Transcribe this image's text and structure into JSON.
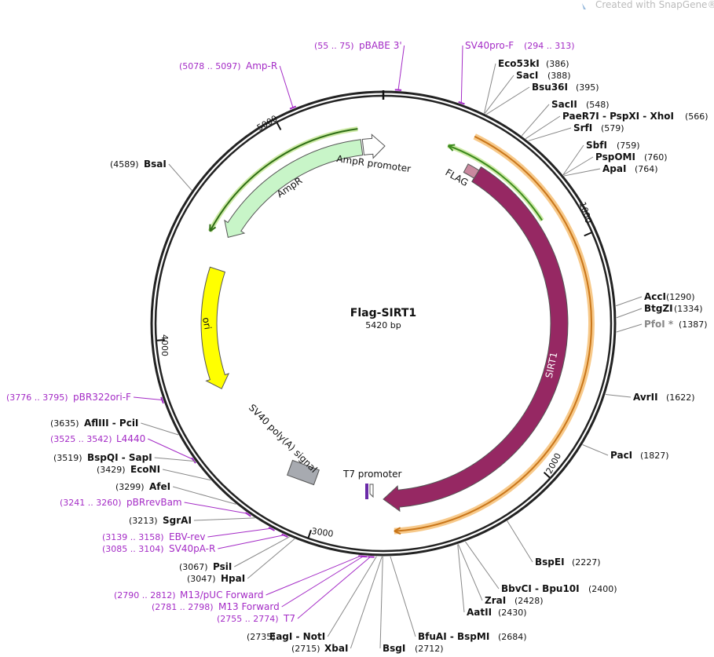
{
  "watermark": "Created with SnapGene®",
  "plasmid": {
    "name": "Flag-SIRT1",
    "size": "5420 bp"
  },
  "ruler": [
    "1000",
    "2000",
    "3000",
    "4000",
    "5000"
  ],
  "features": [
    "AmpR promoter",
    "AmpR",
    "ori",
    "FLAG",
    "SIRT1",
    "SV40 poly(A) signal",
    "T7 promoter"
  ],
  "primers": [
    {
      "range": "(5078 .. 5097)",
      "name": "Amp-R"
    },
    {
      "range": "(55 .. 75)",
      "name": "pBABE 3'"
    },
    {
      "range": "(294 .. 313)",
      "name": "SV40pro-F"
    },
    {
      "range": "(3776 .. 3795)",
      "name": "pBR322ori-F"
    },
    {
      "range": "(3525 .. 3542)",
      "name": "L4440"
    },
    {
      "range": "(3241 .. 3260)",
      "name": "pBRrevBam"
    },
    {
      "range": "(3139 .. 3158)",
      "name": "EBV-rev"
    },
    {
      "range": "(3085 .. 3104)",
      "name": "SV40pA-R"
    },
    {
      "range": "(2790 .. 2812)",
      "name": "M13/pUC Forward"
    },
    {
      "range": "(2781 .. 2798)",
      "name": "M13 Forward"
    },
    {
      "range": "(2755 .. 2774)",
      "name": "T7"
    }
  ],
  "enzymes": [
    {
      "name": "Eco53kI",
      "position": "(386)"
    },
    {
      "name": "SacI",
      "position": "(388)"
    },
    {
      "name": "Bsu36I",
      "position": "(395)"
    },
    {
      "name": "SacII",
      "position": "(548)"
    },
    {
      "name": "PaeR7I - PspXI - XhoI",
      "position": "(566)"
    },
    {
      "name": "SrfI",
      "position": "(579)"
    },
    {
      "name": "SbfI",
      "position": "(759)"
    },
    {
      "name": "PspOMI",
      "position": "(760)"
    },
    {
      "name": "ApaI",
      "position": "(764)"
    },
    {
      "name": "AccI",
      "position": "(1290)"
    },
    {
      "name": "BtgZI",
      "position": "(1334)"
    },
    {
      "name": "PfoI *",
      "position": "(1387)"
    },
    {
      "name": "AvrII",
      "position": "(1622)"
    },
    {
      "name": "PacI",
      "position": "(1827)"
    },
    {
      "name": "BspEI",
      "position": "(2227)"
    },
    {
      "name": "BbvCI - Bpu10I",
      "position": "(2400)"
    },
    {
      "name": "ZraI",
      "position": "(2428)"
    },
    {
      "name": "AatII",
      "position": "(2430)"
    },
    {
      "name": "BfuAI - BspMI",
      "position": "(2684)"
    },
    {
      "name": "BsgI",
      "position": "(2712)"
    },
    {
      "name": "XbaI",
      "position": "(2715)"
    },
    {
      "name": "EagI - NotI",
      "position": "(2735)"
    },
    {
      "name": "HpaI",
      "position": "(3047)"
    },
    {
      "name": "PsiI",
      "position": "(3067)"
    },
    {
      "name": "SgrAI",
      "position": "(3213)"
    },
    {
      "name": "AfeI",
      "position": "(3299)"
    },
    {
      "name": "EcoNI",
      "position": "(3429)"
    },
    {
      "name": "BspQI - SapI",
      "position": "(3519)"
    },
    {
      "name": "AflIII - PciI",
      "position": "(3635)"
    },
    {
      "name": "BsaI",
      "position": "(4589)"
    }
  ]
}
